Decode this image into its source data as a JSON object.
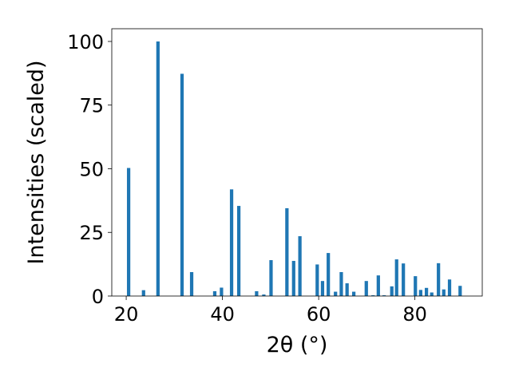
{
  "chart_data": {
    "type": "bar",
    "title": "",
    "xlabel": "2θ (°)",
    "ylabel": "Intensities (scaled)",
    "xlim": [
      17,
      94
    ],
    "ylim": [
      0,
      105
    ],
    "xticks": [
      20,
      40,
      60,
      80
    ],
    "yticks": [
      0,
      25,
      50,
      75,
      100
    ],
    "grid": false,
    "color": "#1f77b4",
    "bar_width": 0.7,
    "x": [
      20.5,
      23.6,
      26.6,
      31.6,
      33.6,
      38.4,
      39.8,
      41.9,
      43.4,
      47.1,
      48.6,
      50.1,
      53.4,
      54.8,
      56.1,
      59.7,
      60.8,
      62.0,
      63.5,
      64.7,
      65.9,
      67.3,
      69.9,
      71.3,
      72.4,
      73.6,
      75.2,
      76.2,
      77.6,
      80.1,
      81.2,
      82.4,
      83.5,
      84.9,
      86.0,
      87.2,
      89.4
    ],
    "values": [
      50.3,
      2.3,
      100.0,
      87.3,
      9.4,
      1.9,
      3.3,
      41.9,
      35.4,
      1.9,
      0.6,
      14.1,
      34.5,
      13.8,
      23.5,
      12.4,
      5.9,
      16.9,
      1.7,
      9.4,
      5.0,
      1.7,
      5.9,
      0.3,
      8.1,
      0.3,
      3.8,
      14.4,
      12.8,
      7.8,
      2.4,
      3.2,
      1.4,
      12.9,
      2.6,
      6.5,
      4.0
    ]
  }
}
